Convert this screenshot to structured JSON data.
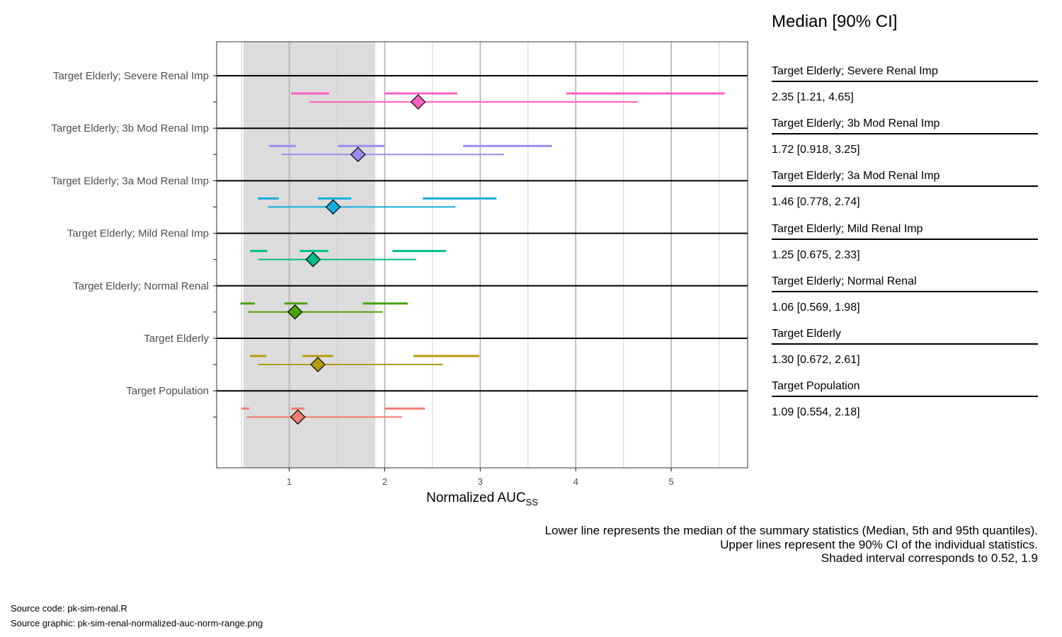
{
  "chart_data": {
    "type": "forest",
    "xlabel": "Normalized AUC",
    "xlabel_subscript": "SS",
    "xlim": [
      0.24,
      5.8
    ],
    "xticks": [
      1,
      2,
      3,
      4,
      5
    ],
    "minor_gridlines": [
      0.5,
      1.5,
      2.5,
      3.5,
      4.5,
      5.5
    ],
    "shaded_interval": [
      0.52,
      1.9
    ],
    "grid": true,
    "groups": [
      {
        "label": "Target Elderly; Severe Renal Imp",
        "color": "#FF61C3",
        "median": 2.35,
        "lower": 1.21,
        "upper": 4.65,
        "ci_lower": [
          1.02,
          1.42
        ],
        "ci_median": [
          2.0,
          2.76
        ],
        "ci_upper": [
          3.9,
          5.56
        ],
        "table_value": "2.35 [1.21, 4.65]"
      },
      {
        "label": "Target Elderly; 3b Mod Renal Imp",
        "color": "#9D8BF0",
        "median": 1.72,
        "lower": 0.918,
        "upper": 3.25,
        "ci_lower": [
          0.79,
          1.07
        ],
        "ci_median": [
          1.51,
          2.0
        ],
        "ci_upper": [
          2.82,
          3.75
        ],
        "table_value": "1.72 [0.918, 3.25]"
      },
      {
        "label": "Target Elderly; 3a Mod Renal Imp",
        "color": "#14ADDC",
        "median": 1.46,
        "lower": 0.778,
        "upper": 2.74,
        "ci_lower": [
          0.67,
          0.89
        ],
        "ci_median": [
          1.3,
          1.65
        ],
        "ci_upper": [
          2.4,
          3.17
        ],
        "table_value": "1.46 [0.778, 2.74]"
      },
      {
        "label": "Target Elderly; Mild Renal Imp",
        "color": "#00BE8A",
        "median": 1.25,
        "lower": 0.675,
        "upper": 2.33,
        "ci_lower": [
          0.59,
          0.77
        ],
        "ci_median": [
          1.11,
          1.41
        ],
        "ci_upper": [
          2.08,
          2.64
        ],
        "table_value": "1.25 [0.675, 2.33]"
      },
      {
        "label": "Target Elderly; Normal Renal",
        "color": "#4AA20F",
        "median": 1.06,
        "lower": 0.569,
        "upper": 1.98,
        "ci_lower": [
          0.49,
          0.64
        ],
        "ci_median": [
          0.95,
          1.19
        ],
        "ci_upper": [
          1.77,
          2.24
        ],
        "table_value": "1.06 [0.569, 1.98]"
      },
      {
        "label": "Target Elderly",
        "color": "#B79B0D",
        "median": 1.3,
        "lower": 0.672,
        "upper": 2.61,
        "ci_lower": [
          0.59,
          0.76
        ],
        "ci_median": [
          1.14,
          1.46
        ],
        "ci_upper": [
          2.3,
          2.99
        ],
        "table_value": "1.30 [0.672, 2.61]"
      },
      {
        "label": "Target Population",
        "color": "#F07C74",
        "median": 1.09,
        "lower": 0.554,
        "upper": 2.18,
        "ci_lower": [
          0.5,
          0.58
        ],
        "ci_median": [
          1.02,
          1.16
        ],
        "ci_upper": [
          2.0,
          2.42
        ],
        "table_value": "1.09 [0.554, 2.18]"
      }
    ]
  },
  "table": {
    "title": "Median [90% CI]"
  },
  "caption": {
    "line1": "Lower line represents the median of the summary statistics (Median, 5th and 95th quantiles).",
    "line2": "Upper lines represent the 90% CI of the individual statistics.",
    "line3": "Shaded interval corresponds to 0.52, 1.9"
  },
  "footer": {
    "source_code": "Source code: pk-sim-renal.R",
    "source_graphic": "Source graphic: pk-sim-renal-normalized-auc-norm-range.png"
  },
  "colors": {
    "shade": "#dcdcdc",
    "major_grid": "#b3b3b3",
    "minor_grid": "#d2d2d2",
    "panel_border": "#333333",
    "separator": "#000000"
  }
}
